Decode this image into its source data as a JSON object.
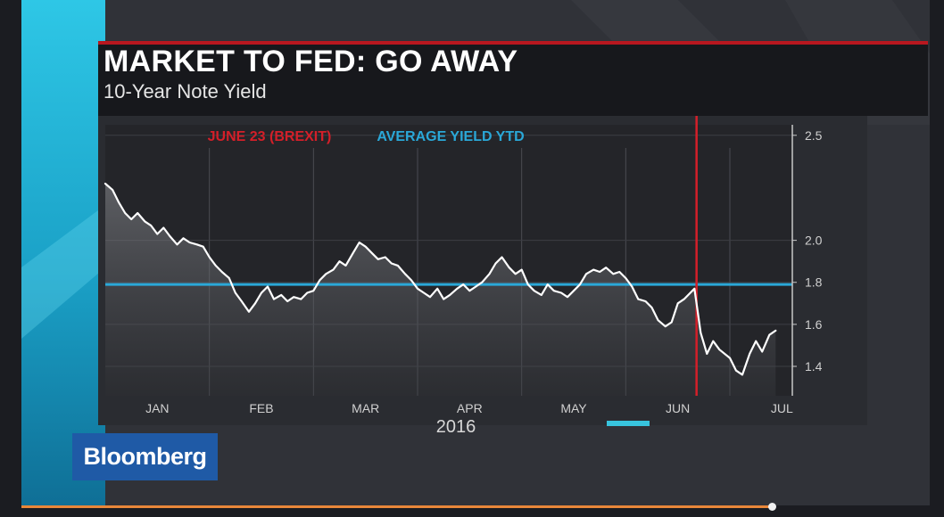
{
  "header": {
    "title": "MARKET TO FED: GO AWAY",
    "subtitle": "10-Year Note Yield"
  },
  "legend": {
    "brexit_label": "JUNE 23 (BREXIT)",
    "average_label": "AVERAGE YIELD YTD"
  },
  "brand": {
    "logo": "Bloomberg"
  },
  "colors": {
    "brexit_line": "#d41f29",
    "average_line": "#2aa8d8",
    "series_line": "#ffffff",
    "accent_bar": "#38c4de",
    "title_rule": "#b8171f",
    "logo_bg": "#1f5aa6"
  },
  "chart_data": {
    "type": "line",
    "title": "MARKET TO FED: GO AWAY",
    "subtitle": "10-Year Note Yield",
    "x_labels": [
      "JAN",
      "FEB",
      "MAR",
      "APR",
      "MAY",
      "JUN",
      "JUL"
    ],
    "year_label": "2016",
    "y_ticks": [
      "2.5",
      "2.0",
      "1.8",
      "1.6",
      "1.4"
    ],
    "ylim": [
      1.26,
      2.55
    ],
    "xlim": [
      0,
      6.6
    ],
    "grid": true,
    "series": [
      {
        "values": [
          [
            0.0,
            2.27
          ],
          [
            0.07,
            2.24
          ],
          [
            0.13,
            2.18
          ],
          [
            0.19,
            2.13
          ],
          [
            0.25,
            2.1
          ],
          [
            0.31,
            2.13
          ],
          [
            0.38,
            2.09
          ],
          [
            0.44,
            2.07
          ],
          [
            0.5,
            2.03
          ],
          [
            0.56,
            2.06
          ],
          [
            0.62,
            2.02
          ],
          [
            0.69,
            1.98
          ],
          [
            0.75,
            2.01
          ],
          [
            0.81,
            1.99
          ],
          [
            0.88,
            1.98
          ],
          [
            0.94,
            1.97
          ],
          [
            1.0,
            1.92
          ],
          [
            1.06,
            1.88
          ],
          [
            1.12,
            1.85
          ],
          [
            1.19,
            1.82
          ],
          [
            1.25,
            1.75
          ],
          [
            1.31,
            1.71
          ],
          [
            1.38,
            1.66
          ],
          [
            1.44,
            1.7
          ],
          [
            1.5,
            1.75
          ],
          [
            1.56,
            1.78
          ],
          [
            1.62,
            1.72
          ],
          [
            1.69,
            1.74
          ],
          [
            1.75,
            1.71
          ],
          [
            1.81,
            1.73
          ],
          [
            1.88,
            1.72
          ],
          [
            1.94,
            1.75
          ],
          [
            2.0,
            1.76
          ],
          [
            2.06,
            1.81
          ],
          [
            2.12,
            1.84
          ],
          [
            2.19,
            1.86
          ],
          [
            2.25,
            1.9
          ],
          [
            2.31,
            1.88
          ],
          [
            2.38,
            1.94
          ],
          [
            2.44,
            1.99
          ],
          [
            2.5,
            1.97
          ],
          [
            2.56,
            1.94
          ],
          [
            2.62,
            1.91
          ],
          [
            2.69,
            1.92
          ],
          [
            2.75,
            1.89
          ],
          [
            2.81,
            1.88
          ],
          [
            2.88,
            1.84
          ],
          [
            2.94,
            1.81
          ],
          [
            3.0,
            1.77
          ],
          [
            3.06,
            1.75
          ],
          [
            3.12,
            1.73
          ],
          [
            3.19,
            1.77
          ],
          [
            3.25,
            1.72
          ],
          [
            3.31,
            1.74
          ],
          [
            3.38,
            1.77
          ],
          [
            3.44,
            1.79
          ],
          [
            3.5,
            1.76
          ],
          [
            3.56,
            1.78
          ],
          [
            3.62,
            1.8
          ],
          [
            3.69,
            1.84
          ],
          [
            3.75,
            1.89
          ],
          [
            3.81,
            1.92
          ],
          [
            3.88,
            1.87
          ],
          [
            3.94,
            1.84
          ],
          [
            4.0,
            1.86
          ],
          [
            4.06,
            1.79
          ],
          [
            4.12,
            1.76
          ],
          [
            4.19,
            1.74
          ],
          [
            4.25,
            1.79
          ],
          [
            4.31,
            1.76
          ],
          [
            4.38,
            1.75
          ],
          [
            4.44,
            1.73
          ],
          [
            4.5,
            1.76
          ],
          [
            4.56,
            1.79
          ],
          [
            4.62,
            1.84
          ],
          [
            4.69,
            1.86
          ],
          [
            4.75,
            1.85
          ],
          [
            4.81,
            1.87
          ],
          [
            4.88,
            1.84
          ],
          [
            4.94,
            1.85
          ],
          [
            5.0,
            1.82
          ],
          [
            5.06,
            1.78
          ],
          [
            5.12,
            1.72
          ],
          [
            5.19,
            1.71
          ],
          [
            5.25,
            1.68
          ],
          [
            5.31,
            1.62
          ],
          [
            5.38,
            1.59
          ],
          [
            5.44,
            1.61
          ],
          [
            5.5,
            1.7
          ],
          [
            5.56,
            1.72
          ],
          [
            5.62,
            1.75
          ],
          [
            5.66,
            1.77
          ],
          [
            5.72,
            1.56
          ],
          [
            5.78,
            1.46
          ],
          [
            5.84,
            1.52
          ],
          [
            5.9,
            1.48
          ],
          [
            6.0,
            1.44
          ],
          [
            6.06,
            1.38
          ],
          [
            6.12,
            1.36
          ],
          [
            6.19,
            1.46
          ],
          [
            6.25,
            1.52
          ],
          [
            6.31,
            1.47
          ],
          [
            6.38,
            1.55
          ],
          [
            6.44,
            1.57
          ]
        ]
      }
    ],
    "average_yield": 1.79,
    "brexit_x": 5.68,
    "annotations": [
      "JUNE 23 (BREXIT)",
      "AVERAGE YIELD YTD"
    ]
  }
}
